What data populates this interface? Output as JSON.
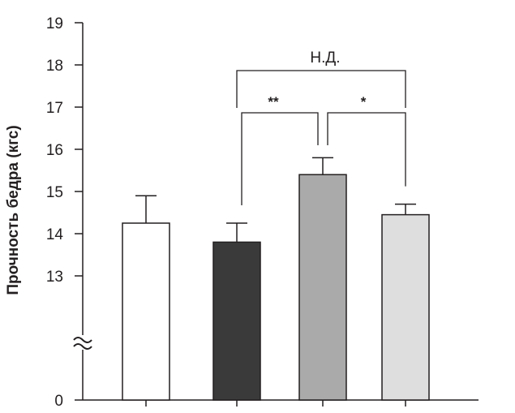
{
  "chart_data": {
    "type": "bar",
    "title": "",
    "xlabel": "",
    "ylabel": "Прочность бедра (кгс)",
    "categories": [
      "",
      "",
      "",
      ""
    ],
    "values": [
      14.25,
      13.8,
      15.4,
      14.45
    ],
    "errors": [
      0.65,
      0.45,
      0.4,
      0.25
    ],
    "bar_colors": [
      "#ffffff",
      "#3a3a3a",
      "#aaaaaa",
      "#dedede"
    ],
    "axis_break": true,
    "ylim": [
      12,
      19
    ],
    "yticks": [
      0,
      13,
      14,
      15,
      16,
      17,
      18,
      19
    ],
    "ytick_labels": [
      "0",
      "13",
      "14",
      "15",
      "16",
      "17",
      "18",
      "19"
    ],
    "annotations": [
      {
        "label": "Н.Д.",
        "from_bar": 1,
        "to_bar": 3
      },
      {
        "label": "**",
        "from_bar": 1,
        "to_bar": 2
      },
      {
        "label": "*",
        "from_bar": 2,
        "to_bar": 3
      }
    ],
    "grid": false,
    "legend": "none"
  }
}
